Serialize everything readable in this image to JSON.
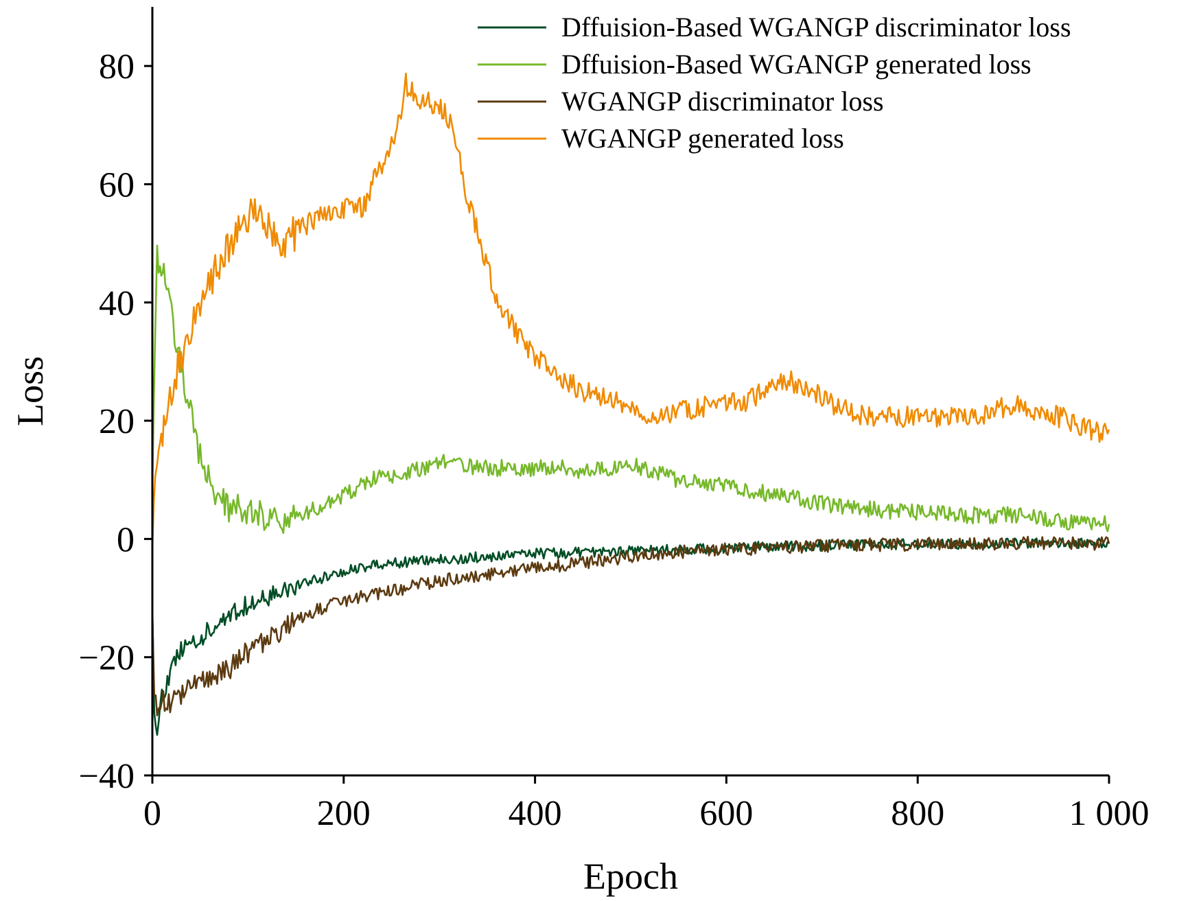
{
  "chart_data": {
    "type": "line",
    "xlabel": "Epoch",
    "ylabel": "Loss",
    "xlim": [
      0,
      1000
    ],
    "ylim": [
      -40,
      90
    ],
    "xticks": [
      0,
      200,
      400,
      600,
      800,
      1000
    ],
    "xtick_labels": [
      "0",
      "200",
      "400",
      "600",
      "800",
      "1 000"
    ],
    "yticks": [
      -40,
      -20,
      0,
      20,
      40,
      60,
      80
    ],
    "ytick_labels": [
      "−40",
      "−20",
      "0",
      "20",
      "40",
      "60",
      "80"
    ],
    "grid": false,
    "legend_position": "top-right",
    "series": [
      {
        "name": "Dffuision-Based WGANGP discriminator loss",
        "color": "#004d25",
        "x": [
          0,
          2,
          5,
          10,
          20,
          30,
          40,
          50,
          60,
          70,
          80,
          100,
          120,
          140,
          160,
          180,
          200,
          230,
          260,
          300,
          350,
          400,
          450,
          500,
          550,
          600,
          650,
          700,
          750,
          800,
          850,
          900,
          950,
          1000
        ],
        "y": [
          -10,
          -28,
          -33,
          -27,
          -22,
          -19,
          -18,
          -17,
          -15,
          -14,
          -13,
          -11,
          -10,
          -8.5,
          -7.5,
          -6.5,
          -5.5,
          -4.5,
          -4,
          -3.5,
          -3,
          -2.5,
          -2.3,
          -2,
          -1.8,
          -1.5,
          -1.3,
          -1.1,
          -1,
          -0.9,
          -0.8,
          -0.8,
          -0.7,
          -0.7
        ]
      },
      {
        "name": "Dffuision-Based WGANGP generated loss",
        "color": "#76b82a",
        "x": [
          0,
          3,
          5,
          8,
          12,
          15,
          20,
          25,
          30,
          35,
          40,
          45,
          50,
          60,
          70,
          80,
          100,
          120,
          140,
          160,
          180,
          200,
          230,
          260,
          300,
          350,
          400,
          430,
          450,
          500,
          550,
          600,
          650,
          700,
          750,
          800,
          850,
          900,
          950,
          1000
        ],
        "y": [
          10,
          35,
          48,
          46,
          46,
          43,
          38,
          33,
          29,
          25,
          22,
          17,
          14,
          10,
          7,
          5,
          5,
          3.5,
          3,
          4.5,
          6,
          7.5,
          10,
          11,
          13,
          12,
          12,
          12,
          11.5,
          12.5,
          10,
          9,
          7.5,
          6,
          5,
          4.5,
          4,
          4,
          3,
          2.5
        ]
      },
      {
        "name": "WGANGP discriminator loss",
        "color": "#5c3a10",
        "x": [
          0,
          2,
          5,
          10,
          20,
          30,
          40,
          50,
          60,
          80,
          100,
          120,
          140,
          160,
          180,
          200,
          230,
          260,
          300,
          350,
          400,
          450,
          500,
          550,
          600,
          650,
          700,
          750,
          800,
          850,
          900,
          950,
          1000
        ],
        "y": [
          -11,
          -26,
          -30,
          -27,
          -28,
          -26,
          -25,
          -24,
          -24,
          -22,
          -19,
          -17,
          -15,
          -13,
          -11.5,
          -10.5,
          -9.5,
          -8.5,
          -7,
          -6,
          -5,
          -4,
          -3,
          -2.2,
          -1.8,
          -1.5,
          -1.2,
          -1,
          -0.9,
          -0.8,
          -0.7,
          -0.7,
          -0.8
        ]
      },
      {
        "name": "WGANGP generated loss",
        "color": "#f08a00",
        "x": [
          0,
          3,
          5,
          8,
          12,
          15,
          20,
          25,
          30,
          35,
          40,
          45,
          50,
          60,
          70,
          80,
          90,
          100,
          110,
          120,
          130,
          140,
          150,
          160,
          170,
          180,
          200,
          220,
          230,
          240,
          250,
          260,
          265,
          270,
          280,
          290,
          300,
          310,
          320,
          330,
          340,
          350,
          360,
          370,
          380,
          390,
          400,
          420,
          440,
          450,
          470,
          500,
          520,
          550,
          570,
          600,
          620,
          640,
          660,
          680,
          700,
          720,
          740,
          760,
          780,
          800,
          820,
          840,
          860,
          880,
          900,
          920,
          940,
          960,
          980,
          990,
          1000
        ],
        "y": [
          0,
          8,
          10,
          14,
          20,
          22,
          25,
          28,
          30,
          33,
          34,
          37,
          39,
          43,
          47,
          50,
          52,
          55,
          54,
          52,
          51,
          50,
          52,
          53,
          54,
          55,
          56,
          56,
          60,
          63,
          67,
          72,
          77,
          76,
          74,
          74,
          73,
          71,
          65,
          57,
          52,
          46,
          41,
          38,
          35,
          33,
          31,
          28,
          26,
          25,
          24,
          22.5,
          21,
          21.5,
          22,
          23.5,
          23,
          25,
          27,
          26,
          24,
          22,
          21,
          20.5,
          20.5,
          21,
          20.5,
          20.5,
          21,
          21.5,
          23,
          22,
          21,
          20,
          18.5,
          18,
          18.5
        ]
      }
    ]
  }
}
